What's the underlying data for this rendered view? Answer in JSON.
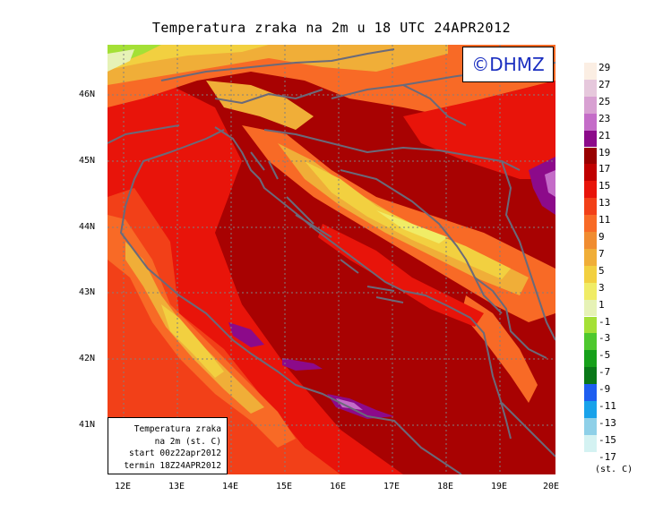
{
  "title": "Temperatura zraka na 2m u 18 UTC 24APR2012",
  "copyright": "©DHMZ",
  "info": {
    "line1": "Temperatura zraka",
    "line2": "na 2m (st. C)",
    "line3": "start 00z22apr2012",
    "line4": "termin 18Z24APR2012"
  },
  "axes": {
    "lat": [
      "46N",
      "45N",
      "44N",
      "43N",
      "42N",
      "41N"
    ],
    "lon": [
      "12E",
      "13E",
      "14E",
      "15E",
      "16E",
      "17E",
      "18E",
      "19E",
      "20E"
    ]
  },
  "legend": {
    "unit": "(st. C)",
    "labels": [
      "29",
      "27",
      "25",
      "23",
      "21",
      "19",
      "17",
      "15",
      "13",
      "11",
      "9",
      "7",
      "5",
      "3",
      "1",
      "-1",
      "-3",
      "-5",
      "-7",
      "-9",
      "-11",
      "-13",
      "-15",
      "-17"
    ],
    "colors": [
      "#fbeee3",
      "#e6c8dc",
      "#d8a0d2",
      "#c46cc8",
      "#8c0a8a",
      "#990000",
      "#c00000",
      "#e8140a",
      "#f24018",
      "#f86a26",
      "#f08c30",
      "#f0ae38",
      "#f2d040",
      "#f0ec66",
      "#e6f2b6",
      "#a4e036",
      "#4ec82e",
      "#16a01a",
      "#0a7818",
      "#1e5ef0",
      "#18a2ea",
      "#8ed0e8",
      "#d4f2f2",
      "#ffffff"
    ]
  }
}
